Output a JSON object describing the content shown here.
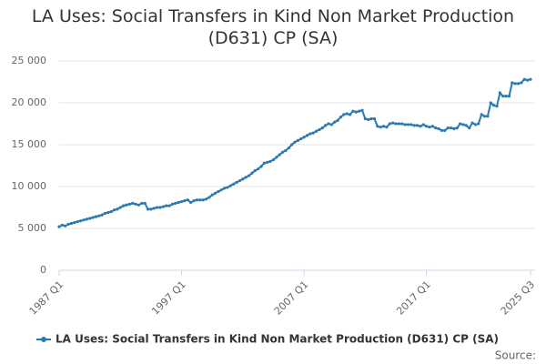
{
  "chart_data": {
    "type": "line",
    "title": "LA Uses: Social Transfers in Kind Non Market Production (D631) CP (SA)",
    "categories": [
      "1987 Q1",
      null,
      null,
      null,
      null,
      null,
      null,
      null,
      null,
      null,
      null,
      null,
      null,
      null,
      null,
      null,
      null,
      null,
      null,
      null,
      null,
      null,
      null,
      null,
      null,
      null,
      null,
      null,
      null,
      null,
      null,
      null,
      null,
      null,
      null,
      null,
      null,
      null,
      null,
      null,
      "1997 Q1",
      null,
      null,
      null,
      null,
      null,
      null,
      null,
      null,
      null,
      null,
      null,
      null,
      null,
      null,
      null,
      null,
      null,
      null,
      null,
      null,
      null,
      null,
      null,
      null,
      null,
      null,
      null,
      null,
      null,
      null,
      null,
      null,
      null,
      null,
      null,
      null,
      null,
      null,
      null,
      "2007 Q1",
      null,
      null,
      null,
      null,
      null,
      null,
      null,
      null,
      null,
      null,
      null,
      null,
      null,
      null,
      null,
      null,
      null,
      null,
      null,
      null,
      null,
      null,
      null,
      null,
      null,
      null,
      null,
      null,
      null,
      null,
      null,
      null,
      null,
      null,
      null,
      null,
      null,
      null,
      null,
      "2017 Q1",
      null,
      null,
      null,
      null,
      null,
      null,
      null,
      null,
      null,
      null,
      null,
      null,
      null,
      null,
      null,
      null,
      null,
      null,
      null,
      null,
      null,
      null,
      null,
      null,
      null,
      null,
      null,
      null,
      null,
      null,
      null,
      null,
      null,
      "2025 Q3"
    ],
    "series": [
      {
        "name": "LA Uses: Social Transfers in Kind Non Market Production (D631) CP (SA)",
        "color": "#2a7ab0",
        "values": [
          5200,
          5400,
          5300,
          5500,
          5600,
          5700,
          5800,
          5900,
          6000,
          6100,
          6200,
          6300,
          6400,
          6500,
          6600,
          6800,
          6900,
          7000,
          7200,
          7300,
          7500,
          7700,
          7800,
          7900,
          8000,
          7900,
          7800,
          8000,
          8000,
          7300,
          7300,
          7400,
          7500,
          7500,
          7600,
          7700,
          7700,
          7900,
          8000,
          8100,
          8200,
          8300,
          8400,
          8100,
          8300,
          8400,
          8400,
          8400,
          8500,
          8700,
          9000,
          9200,
          9400,
          9600,
          9800,
          9900,
          10100,
          10300,
          10500,
          10700,
          10900,
          11100,
          11300,
          11600,
          11900,
          12100,
          12400,
          12800,
          12900,
          13000,
          13200,
          13500,
          13800,
          14100,
          14300,
          14600,
          15000,
          15300,
          15500,
          15700,
          15900,
          16100,
          16300,
          16400,
          16600,
          16800,
          17000,
          17300,
          17500,
          17400,
          17700,
          17900,
          18300,
          18600,
          18700,
          18600,
          19000,
          18900,
          19000,
          19100,
          18100,
          18000,
          18100,
          18100,
          17200,
          17100,
          17200,
          17100,
          17500,
          17600,
          17500,
          17500,
          17500,
          17400,
          17400,
          17400,
          17300,
          17300,
          17200,
          17400,
          17200,
          17100,
          17200,
          17000,
          16900,
          16700,
          16700,
          17000,
          17000,
          16900,
          17000,
          17500,
          17400,
          17300,
          17000,
          17600,
          17400,
          17500,
          18600,
          18400,
          18400,
          20000,
          19700,
          19600,
          21200,
          20800,
          20800,
          20800,
          22400,
          22300,
          22300,
          22400,
          22800,
          22700,
          22800
        ]
      }
    ],
    "ylim": [
      0,
      25000
    ],
    "yticks": [
      0,
      {
        "value": 5000,
        "label": "5 000"
      },
      {
        "value": 10000,
        "label": "10 000"
      },
      {
        "value": 15000,
        "label": "15 000"
      },
      {
        "value": 20000,
        "label": "20 000"
      },
      {
        "value": 25000,
        "label": "25 000"
      }
    ],
    "grid": true,
    "legend": "bottom",
    "source": "Source:"
  }
}
